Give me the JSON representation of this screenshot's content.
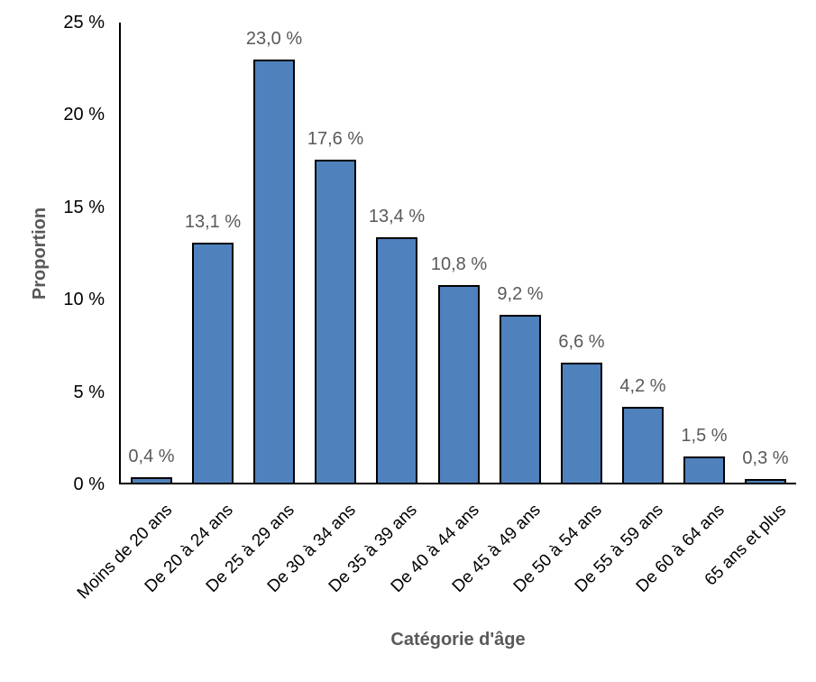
{
  "chart_data": {
    "type": "bar",
    "title": "",
    "xlabel": "Catégorie d'âge",
    "ylabel": "Proportion",
    "categories": [
      "Moins de 20 ans",
      "De 20 à 24 ans",
      "De 25 à 29 ans",
      "De 30 à 34 ans",
      "De 35 à 39 ans",
      "De 40 à 44 ans",
      "De 45 à 49 ans",
      "De 50 à 54 ans",
      "De 55 à 59 ans",
      "De 60 à 64 ans",
      "65 ans et plus"
    ],
    "values": [
      0.4,
      13.1,
      23.0,
      17.6,
      13.4,
      10.8,
      9.2,
      6.6,
      4.2,
      1.5,
      0.3
    ],
    "value_labels": [
      "0,4 %",
      "13,1 %",
      "23,0 %",
      "17,6 %",
      "13,4 %",
      "10,8 %",
      "9,2 %",
      "6,6 %",
      "4,2 %",
      "1,5 %",
      "0,3 %"
    ],
    "ylim": [
      0,
      25
    ],
    "ytick_step": 5,
    "ytick_labels": [
      "0 %",
      "5 %",
      "10 %",
      "15 %",
      "20 %",
      "25 %"
    ],
    "grid": false,
    "legend": false,
    "colors": {
      "bar_fill": "#4F81BD",
      "bar_border": "#000000",
      "axis_line": "#000000",
      "tick_label": "#000000",
      "category_label": "#000000",
      "value_label": "#595959",
      "axis_title": "#595959"
    }
  }
}
